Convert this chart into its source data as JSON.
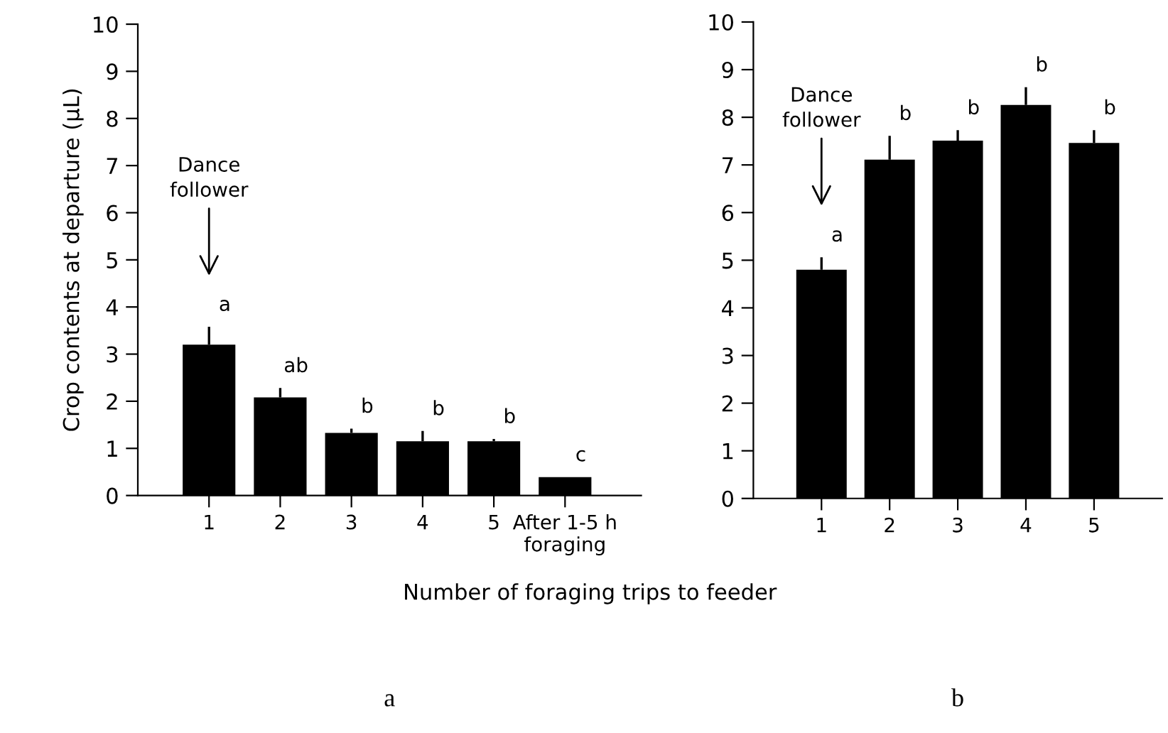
{
  "chart_data": [
    {
      "type": "bar",
      "ylabel": "Crop contents at departure (µL)",
      "xlabel": "Number of foraging trips to feeder",
      "categories": [
        "1",
        "2",
        "3",
        "4",
        "5",
        "After 1-5 h\nforaging"
      ],
      "values": [
        3.2,
        2.08,
        1.33,
        1.15,
        1.15,
        0.39
      ],
      "errors": [
        [
          3.2,
          3.58
        ],
        [
          2.08,
          2.28
        ],
        [
          1.33,
          1.42
        ],
        [
          1.15,
          1.37
        ],
        [
          1.15,
          1.2
        ],
        null
      ],
      "color": "#000000",
      "ylim": [
        0,
        10
      ],
      "yticks": [
        0,
        1,
        2,
        3,
        4,
        5,
        6,
        7,
        8,
        9,
        10
      ],
      "grid": false,
      "annotations": [
        "Dance\nfollower",
        "a",
        "ab",
        "b",
        "b",
        "b",
        "c",
        "a"
      ]
    },
    {
      "type": "bar",
      "categories": [
        "1",
        "2",
        "3",
        "4",
        "5"
      ],
      "values": [
        4.8,
        7.11,
        7.51,
        8.26,
        7.46
      ],
      "errors": [
        [
          4.8,
          5.06
        ],
        [
          7.11,
          7.61
        ],
        [
          7.51,
          7.73
        ],
        [
          8.26,
          8.63
        ],
        [
          7.46,
          7.73
        ]
      ],
      "color": "#000000",
      "ylim": [
        0,
        10
      ],
      "yticks": [
        0,
        1,
        2,
        3,
        4,
        5,
        6,
        7,
        8,
        9,
        10
      ],
      "grid": false,
      "annotations": [
        "Dance\nfollower",
        "a",
        "b",
        "b",
        "b",
        "b",
        "b"
      ]
    }
  ]
}
